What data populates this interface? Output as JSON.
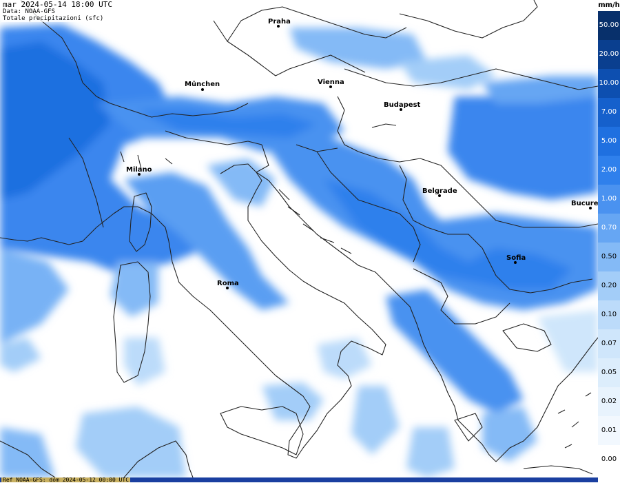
{
  "header": {
    "time": "mar 2024-05-14 18:00 UTC",
    "source": "Data: NOAA-GFS",
    "variable": "Totale precipitazioni (sfc)"
  },
  "footer": {
    "ref": "Ref NOAA-GFS: dom 2024-05-12 00:00 UTC"
  },
  "legend": {
    "unit": "mm/h",
    "steps": [
      {
        "label": "50.00",
        "color": "#08306b",
        "text": "#ffffff"
      },
      {
        "label": "20.00",
        "color": "#0a3f8f",
        "text": "#ffffff"
      },
      {
        "label": "10.00",
        "color": "#0d4fb0",
        "text": "#ffffff"
      },
      {
        "label": "7.00",
        "color": "#1560cc",
        "text": "#ffffff"
      },
      {
        "label": "5.00",
        "color": "#1f70e0",
        "text": "#ffffff"
      },
      {
        "label": "2.00",
        "color": "#2f80ec",
        "text": "#ffffff"
      },
      {
        "label": "1.00",
        "color": "#4a92f0",
        "text": "#ffffff"
      },
      {
        "label": "0.70",
        "color": "#66a6f3",
        "text": "#ffffff"
      },
      {
        "label": "0.50",
        "color": "#84baf6",
        "text": "#000000"
      },
      {
        "label": "0.20",
        "color": "#a3cdf8",
        "text": "#000000"
      },
      {
        "label": "0.10",
        "color": "#bcdbfa",
        "text": "#000000"
      },
      {
        "label": "0.07",
        "color": "#cfe6fb",
        "text": "#000000"
      },
      {
        "label": "0.05",
        "color": "#dcedfc",
        "text": "#000000"
      },
      {
        "label": "0.02",
        "color": "#e8f3fd",
        "text": "#000000"
      },
      {
        "label": "0.01",
        "color": "#f2f8fe",
        "text": "#000000"
      },
      {
        "label": "0.00",
        "color": "#ffffff",
        "text": "#000000"
      }
    ]
  },
  "cities": [
    {
      "name": "Praha"
    },
    {
      "name": "München"
    },
    {
      "name": "Vienna"
    },
    {
      "name": "Budapest"
    },
    {
      "name": "Milano"
    },
    {
      "name": "Belgrade"
    },
    {
      "name": "Bucure"
    },
    {
      "name": "Sofia"
    },
    {
      "name": "Roma"
    }
  ]
}
